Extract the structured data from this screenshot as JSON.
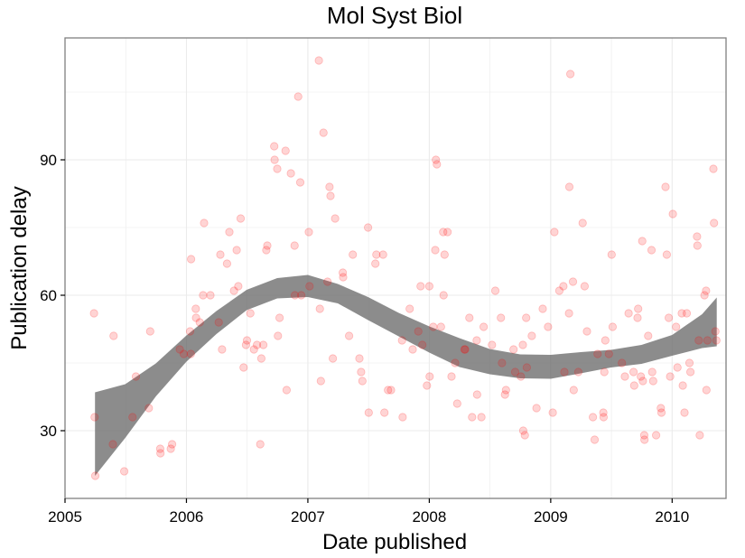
{
  "chart_data": {
    "type": "scatter",
    "title": "Mol Syst Biol",
    "xlabel": "Date published",
    "ylabel": "Publication delay",
    "x_ticks": [
      "2005",
      "2006",
      "2007",
      "2008",
      "2009",
      "2010"
    ],
    "y_ticks": [
      30,
      60,
      90
    ],
    "xlim": [
      "2005-01-01",
      "2010-06-12"
    ],
    "ylim": [
      15,
      117
    ],
    "grid": true,
    "colors": {
      "point": "#ff0000",
      "ribbon": "#666666",
      "panel_border": "#7f7f7f",
      "grid": "#ebebeb"
    },
    "series": [
      {
        "points": [
          [
            "2005-03-29",
            56
          ],
          [
            "2005-03-31",
            33
          ],
          [
            "2005-04-02",
            20
          ],
          [
            "2005-05-25",
            27
          ],
          [
            "2005-05-27",
            51
          ],
          [
            "2005-06-28",
            21
          ],
          [
            "2005-07-23",
            33
          ],
          [
            "2005-08-02",
            42
          ],
          [
            "2005-09-10",
            35
          ],
          [
            "2005-09-14",
            52
          ],
          [
            "2005-10-14",
            26
          ],
          [
            "2005-10-15",
            25
          ],
          [
            "2005-11-15",
            26
          ],
          [
            "2005-11-19",
            27
          ],
          [
            "2005-12-12",
            48
          ],
          [
            "2005-12-24",
            47
          ],
          [
            "2006-01-12",
            52
          ],
          [
            "2006-01-14",
            47
          ],
          [
            "2006-01-15",
            68
          ],
          [
            "2006-01-29",
            57
          ],
          [
            "2006-01-30",
            55
          ],
          [
            "2006-02-10",
            54
          ],
          [
            "2006-02-20",
            60
          ],
          [
            "2006-02-23",
            76
          ],
          [
            "2006-03-14",
            60
          ],
          [
            "2006-04-08",
            54
          ],
          [
            "2006-04-13",
            69
          ],
          [
            "2006-04-18",
            48
          ],
          [
            "2006-05-03",
            67
          ],
          [
            "2006-05-10",
            74
          ],
          [
            "2006-05-24",
            61
          ],
          [
            "2006-06-01",
            70
          ],
          [
            "2006-06-06",
            62
          ],
          [
            "2006-06-13",
            77
          ],
          [
            "2006-06-22",
            44
          ],
          [
            "2006-06-29",
            49
          ],
          [
            "2006-07-02",
            50
          ],
          [
            "2006-07-12",
            56
          ],
          [
            "2006-07-23",
            48
          ],
          [
            "2006-08-01",
            49
          ],
          [
            "2006-08-11",
            27
          ],
          [
            "2006-08-14",
            46
          ],
          [
            "2006-08-20",
            49
          ],
          [
            "2006-08-29",
            70
          ],
          [
            "2006-09-01",
            71
          ],
          [
            "2006-09-22",
            93
          ],
          [
            "2006-09-23",
            90
          ],
          [
            "2006-10-01",
            88
          ],
          [
            "2006-10-03",
            51
          ],
          [
            "2006-10-08",
            55
          ],
          [
            "2006-10-26",
            92
          ],
          [
            "2006-10-29",
            39
          ],
          [
            "2006-11-11",
            87
          ],
          [
            "2006-11-22",
            71
          ],
          [
            "2006-11-23",
            60
          ],
          [
            "2006-12-03",
            104
          ],
          [
            "2006-12-09",
            85
          ],
          [
            "2006-12-12",
            60
          ],
          [
            "2007-01-04",
            74
          ],
          [
            "2007-01-06",
            62
          ],
          [
            "2007-02-03",
            112
          ],
          [
            "2007-02-06",
            57
          ],
          [
            "2007-02-09",
            41
          ],
          [
            "2007-02-17",
            96
          ],
          [
            "2007-03-01",
            63
          ],
          [
            "2007-03-07",
            84
          ],
          [
            "2007-03-10",
            82
          ],
          [
            "2007-03-17",
            46
          ],
          [
            "2007-03-24",
            77
          ],
          [
            "2007-04-16",
            65
          ],
          [
            "2007-04-17",
            64
          ],
          [
            "2007-05-05",
            51
          ],
          [
            "2007-05-16",
            69
          ],
          [
            "2007-06-05",
            46
          ],
          [
            "2007-06-10",
            43
          ],
          [
            "2007-06-14",
            41
          ],
          [
            "2007-07-01",
            75
          ],
          [
            "2007-07-03",
            34
          ],
          [
            "2007-07-23",
            67
          ],
          [
            "2007-07-26",
            69
          ],
          [
            "2007-08-15",
            69
          ],
          [
            "2007-08-19",
            34
          ],
          [
            "2007-08-30",
            39
          ],
          [
            "2007-09-08",
            39
          ],
          [
            "2007-10-11",
            50
          ],
          [
            "2007-10-13",
            33
          ],
          [
            "2007-11-03",
            57
          ],
          [
            "2007-11-12",
            48
          ],
          [
            "2007-11-29",
            52
          ],
          [
            "2007-12-06",
            62
          ],
          [
            "2007-12-11",
            49
          ],
          [
            "2007-12-25",
            40
          ],
          [
            "2008-01-01",
            62
          ],
          [
            "2008-01-02",
            42
          ],
          [
            "2008-01-13",
            53
          ],
          [
            "2008-01-19",
            70
          ],
          [
            "2008-01-21",
            90
          ],
          [
            "2008-01-24",
            89
          ],
          [
            "2008-02-05",
            53
          ],
          [
            "2008-02-12",
            74
          ],
          [
            "2008-02-13",
            60
          ],
          [
            "2008-02-16",
            69
          ],
          [
            "2008-02-25",
            74
          ],
          [
            "2008-03-08",
            42
          ],
          [
            "2008-03-19",
            45
          ],
          [
            "2008-03-25",
            36
          ],
          [
            "2008-04-16",
            48
          ],
          [
            "2008-04-18",
            48
          ],
          [
            "2008-05-01",
            55
          ],
          [
            "2008-05-09",
            33
          ],
          [
            "2008-05-23",
            50
          ],
          [
            "2008-05-24",
            38
          ],
          [
            "2008-06-06",
            33
          ],
          [
            "2008-06-13",
            53
          ],
          [
            "2008-07-08",
            49
          ],
          [
            "2008-07-18",
            61
          ],
          [
            "2008-08-04",
            55
          ],
          [
            "2008-08-07",
            45
          ],
          [
            "2008-08-16",
            38
          ],
          [
            "2008-08-19",
            39
          ],
          [
            "2008-09-11",
            48
          ],
          [
            "2008-09-16",
            43
          ],
          [
            "2008-10-03",
            42
          ],
          [
            "2008-10-09",
            49
          ],
          [
            "2008-10-10",
            30
          ],
          [
            "2008-10-15",
            29
          ],
          [
            "2008-10-19",
            55
          ],
          [
            "2008-10-21",
            44
          ],
          [
            "2008-11-05",
            51
          ],
          [
            "2008-11-19",
            35
          ],
          [
            "2008-12-08",
            57
          ],
          [
            "2008-12-24",
            53
          ],
          [
            "2009-01-07",
            34
          ],
          [
            "2009-01-12",
            74
          ],
          [
            "2009-01-27",
            61
          ],
          [
            "2009-02-08",
            62
          ],
          [
            "2009-02-11",
            43
          ],
          [
            "2009-02-25",
            56
          ],
          [
            "2009-02-26",
            84
          ],
          [
            "2009-03-01",
            109
          ],
          [
            "2009-03-09",
            63
          ],
          [
            "2009-03-11",
            39
          ],
          [
            "2009-03-25",
            43
          ],
          [
            "2009-04-07",
            76
          ],
          [
            "2009-04-13",
            62
          ],
          [
            "2009-04-20",
            52
          ],
          [
            "2009-05-08",
            33
          ],
          [
            "2009-05-13",
            28
          ],
          [
            "2009-05-22",
            47
          ],
          [
            "2009-06-08",
            34
          ],
          [
            "2009-06-09",
            33
          ],
          [
            "2009-06-11",
            43
          ],
          [
            "2009-06-14",
            50
          ],
          [
            "2009-06-25",
            47
          ],
          [
            "2009-07-03",
            69
          ],
          [
            "2009-07-06",
            53
          ],
          [
            "2009-08-03",
            45
          ],
          [
            "2009-08-12",
            42
          ],
          [
            "2009-08-23",
            56
          ],
          [
            "2009-09-07",
            43
          ],
          [
            "2009-09-09",
            40
          ],
          [
            "2009-09-19",
            55
          ],
          [
            "2009-09-21",
            57
          ],
          [
            "2009-09-29",
            42
          ],
          [
            "2009-10-03",
            72
          ],
          [
            "2009-10-05",
            41
          ],
          [
            "2009-10-09",
            29
          ],
          [
            "2009-10-10",
            28
          ],
          [
            "2009-10-21",
            51
          ],
          [
            "2009-10-31",
            70
          ],
          [
            "2009-11-02",
            43
          ],
          [
            "2009-11-05",
            41
          ],
          [
            "2009-11-14",
            29
          ],
          [
            "2009-11-28",
            35
          ],
          [
            "2009-11-30",
            34
          ],
          [
            "2009-12-12",
            84
          ],
          [
            "2009-12-16",
            69
          ],
          [
            "2009-12-22",
            55
          ],
          [
            "2009-12-26",
            42
          ],
          [
            "2010-01-03",
            78
          ],
          [
            "2010-01-13",
            53
          ],
          [
            "2010-01-17",
            44
          ],
          [
            "2010-01-30",
            56
          ],
          [
            "2010-02-02",
            40
          ],
          [
            "2010-02-07",
            34
          ],
          [
            "2010-02-14",
            56
          ],
          [
            "2010-02-22",
            45
          ],
          [
            "2010-02-25",
            43
          ],
          [
            "2010-03-17",
            73
          ],
          [
            "2010-03-18",
            71
          ],
          [
            "2010-03-22",
            50
          ],
          [
            "2010-03-25",
            29
          ],
          [
            "2010-04-08",
            60
          ],
          [
            "2010-04-13",
            61
          ],
          [
            "2010-04-14",
            39
          ],
          [
            "2010-04-17",
            50
          ],
          [
            "2010-05-05",
            88
          ],
          [
            "2010-05-07",
            76
          ],
          [
            "2010-05-11",
            52
          ],
          [
            "2010-05-14",
            50
          ]
        ]
      }
    ],
    "smooth_band": {
      "x": [
        "2005-04-01",
        "2005-07-01",
        "2005-10-01",
        "2006-01-01",
        "2006-04-01",
        "2006-07-01",
        "2006-10-01",
        "2007-01-01",
        "2007-04-01",
        "2007-07-01",
        "2007-10-01",
        "2008-01-01",
        "2008-04-01",
        "2008-07-01",
        "2008-10-01",
        "2009-01-01",
        "2009-04-01",
        "2009-07-01",
        "2009-10-01",
        "2010-01-01",
        "2010-04-01",
        "2010-05-15"
      ],
      "upper": [
        38.5,
        40.3,
        44.9,
        51.1,
        56.5,
        61.2,
        63.8,
        64.5,
        62.5,
        59.6,
        56.1,
        53.1,
        50.5,
        48.1,
        46.9,
        46.8,
        47.4,
        47.9,
        49.0,
        51.2,
        55.8,
        59.5
      ],
      "lower": [
        20.0,
        28.4,
        37.6,
        45.3,
        51.4,
        56.7,
        59.3,
        59.6,
        58.2,
        54.5,
        50.9,
        47.3,
        44.1,
        42.5,
        41.6,
        41.5,
        42.7,
        44.0,
        44.8,
        46.6,
        48.3,
        48.7
      ]
    }
  }
}
